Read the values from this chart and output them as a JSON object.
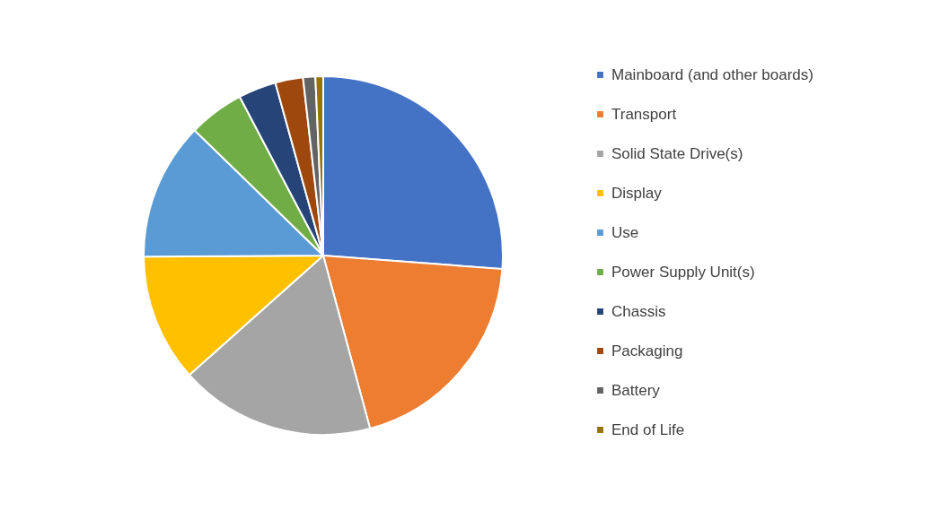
{
  "chart_data": {
    "type": "pie",
    "categories": [
      "Mainboard (and other boards)",
      "Transport",
      "Solid State Drive(s)",
      "Display",
      "Use",
      "Power Supply Unit(s)",
      "Chassis",
      "Packaging",
      "Battery",
      "End of Life"
    ],
    "values": [
      26.2,
      19.6,
      17.6,
      11.5,
      12.4,
      5.0,
      3.4,
      2.5,
      1.1,
      0.7
    ],
    "colors": [
      "#4472c4",
      "#ed7d31",
      "#a5a5a5",
      "#ffc000",
      "#5b9bd5",
      "#70ad47",
      "#264478",
      "#9e480e",
      "#636363",
      "#997300"
    ],
    "legend": "right"
  }
}
